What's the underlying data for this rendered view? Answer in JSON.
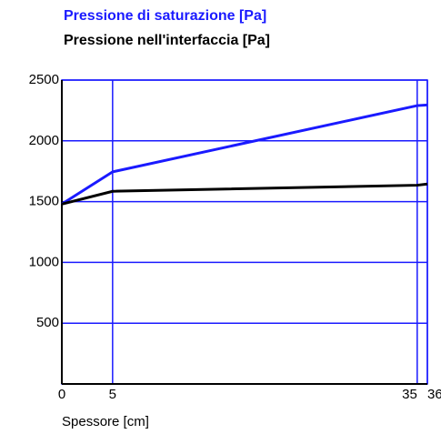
{
  "chart_data": {
    "type": "line",
    "x_label": "Spessore [cm]",
    "x": [
      0,
      5,
      35,
      36
    ],
    "series": [
      {
        "name": "Pressione di saturazione [Pa]",
        "color": "#1a1aff",
        "values": [
          1480,
          1745,
          2290,
          2295
        ]
      },
      {
        "name": "Pressione nell'interfaccia [Pa]",
        "color": "#000000",
        "values": [
          1480,
          1585,
          1635,
          1645
        ]
      }
    ],
    "xlim": [
      0,
      36
    ],
    "xticks": [
      0,
      5,
      35,
      36
    ],
    "ylim": [
      0,
      2500
    ],
    "yticks": [
      500,
      1000,
      1500,
      2000,
      2500
    ],
    "grid": true,
    "grid_color": "#1a1aff"
  }
}
